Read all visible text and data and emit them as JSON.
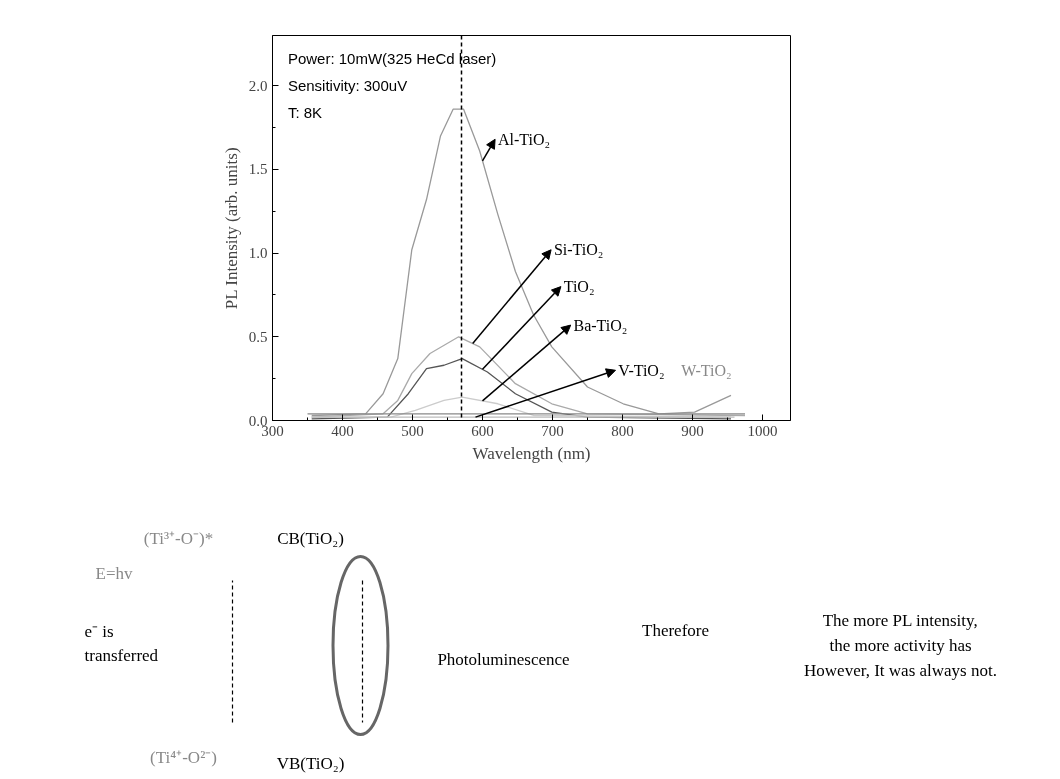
{
  "chart_data": [
    {
      "type": "line",
      "xlabel": "Wavelength (nm)",
      "ylabel": "PL Intensity (arb. units)",
      "xlim": [
        300,
        1040
      ],
      "ylim": [
        0,
        2.3
      ],
      "xticks": [
        300,
        400,
        500,
        600,
        700,
        800,
        900,
        1000
      ],
      "yticks": [
        {
          "value": 0,
          "label": "0.0"
        },
        {
          "value": 0.5,
          "label": "0.5"
        },
        {
          "value": 1,
          "label": "1.0"
        },
        {
          "value": 1.5,
          "label": "1.5"
        },
        {
          "value": 2,
          "label": "2.0"
        }
      ],
      "grid": false,
      "marker": "none",
      "line_style": "solid",
      "annotations": [
        "Power: 10mW(325 HeCd laser)",
        "Sensitivity: 300uV",
        "T: 8K"
      ],
      "ref_lines": [
        {
          "axis": "x",
          "value": 570,
          "label": null,
          "line_style": "dashed",
          "color": "#000000"
        }
      ],
      "series": [
        {
          "name": "Al-TiO₂",
          "color": "#999999",
          "x": [
            356,
            433,
            458,
            479,
            499,
            520,
            540,
            558,
            573,
            596,
            622,
            647,
            673,
            699,
            750,
            801,
            852,
            903,
            955
          ],
          "values": [
            0.03,
            0.04,
            0.16,
            0.37,
            1.02,
            1.32,
            1.7,
            1.86,
            1.86,
            1.61,
            1.23,
            0.89,
            0.63,
            0.44,
            0.2,
            0.1,
            0.04,
            0.05,
            0.15
          ]
        },
        {
          "name": "Si-TiO₂",
          "color": "#aaaaaa",
          "x": [
            356,
            458,
            479,
            499,
            525,
            566,
            596,
            647,
            699,
            750,
            975
          ],
          "values": [
            0.02,
            0.04,
            0.12,
            0.28,
            0.4,
            0.5,
            0.44,
            0.22,
            0.1,
            0.04,
            0.03
          ]
        },
        {
          "name": "TiO₂",
          "color": "#555555",
          "x": [
            356,
            464,
            494,
            520,
            545,
            571,
            607,
            647,
            699,
            750,
            955
          ],
          "values": [
            0.01,
            0.02,
            0.16,
            0.31,
            0.33,
            0.37,
            0.29,
            0.16,
            0.05,
            0.02,
            0.01
          ]
        },
        {
          "name": "Ba-TiO₂",
          "color": "#cccccc",
          "x": [
            356,
            469,
            504,
            545,
            571,
            622,
            673,
            955
          ],
          "values": [
            0.02,
            0.02,
            0.06,
            0.12,
            0.14,
            0.1,
            0.03,
            0.02
          ]
        },
        {
          "name": "V-TiO₂",
          "color": "#bbbbbb",
          "x": [
            356,
            960
          ],
          "values": [
            0.02,
            0.02
          ]
        },
        {
          "name": "W-TiO₂",
          "color": "#888888",
          "x": [
            350,
            975
          ],
          "values": [
            0.04,
            0.04
          ]
        }
      ]
    },
    {
      "type": "other",
      "annotations": [
        "(Ti³⁺-O⁻)*",
        "CB(TiO₂)",
        "E=hv",
        "e⁻  is\ntransferred",
        "Photoluminescence",
        "Therefore",
        "The more PL intensity,\nthe more activity has\nHowever, It was always not.",
        "(Ti⁴⁺-O²⁻)",
        "VB(TiO₂)"
      ]
    }
  ]
}
